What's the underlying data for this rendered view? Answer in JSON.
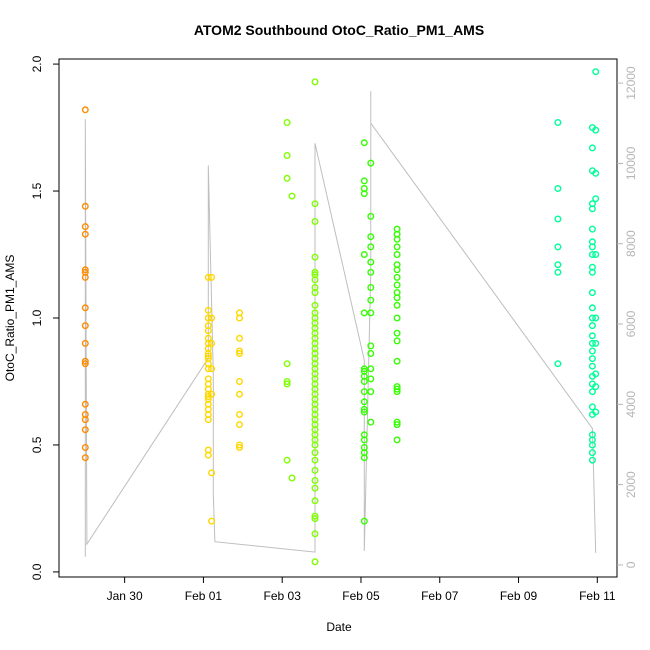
{
  "chart_data": {
    "type": "scatter",
    "title": "ATOM2 Southbound OtoC_Ratio_PM1_AMS",
    "xlabel": "Date",
    "ylabel": "OtoC_Ratio_PM1_AMS",
    "x_tick_labels": [
      "Jan 30",
      "Feb 01",
      "Feb 03",
      "Feb 05",
      "Feb 07",
      "Feb 09",
      "Feb 11"
    ],
    "y_ticks": [
      "0.0",
      "0.5",
      "1.0",
      "1.5",
      "2.0"
    ],
    "y2_ticks": [
      "0",
      "2000",
      "4000",
      "6000",
      "8000",
      "10000",
      "12000"
    ],
    "xlim": [
      "2017-01-28T08:00",
      "2017-02-11T12:00"
    ],
    "ylim": [
      -0.02,
      2.02
    ],
    "y2lim": [
      -300,
      12600
    ],
    "grid": false,
    "colors": {
      "marker_cycle": [
        "#ff8c00",
        "#ffd700",
        "#e8ff00",
        "#7fff00",
        "#00ff00",
        "#00ff80",
        "#00ffcc"
      ],
      "secondary_line": "#bebebe",
      "right_axis": "#b5b5b5"
    },
    "series": [
      {
        "color": "#ff8c00",
        "points": [
          {
            "x": "2017-01-29T00:00",
            "y": [
              1.82,
              1.44,
              1.36,
              1.33,
              1.19,
              1.18,
              1.16,
              1.04,
              0.97,
              0.9,
              0.83,
              0.82,
              0.66,
              0.62,
              0.6,
              0.56,
              0.49,
              0.45
            ]
          }
        ]
      },
      {
        "color": "#ffd700",
        "points": [
          {
            "x": "2017-02-01T03:00",
            "y": [
              1.16,
              1.03,
              1.0,
              0.97,
              0.95,
              0.92,
              0.9,
              0.88,
              0.86,
              0.85,
              0.84,
              0.82,
              0.8,
              0.76,
              0.74,
              0.72,
              0.7,
              0.69,
              0.68,
              0.66,
              0.64,
              0.62,
              0.6,
              0.48,
              0.46
            ]
          },
          {
            "x": "2017-02-01T05:00",
            "y": [
              1.16,
              1.0,
              0.9,
              0.8,
              0.7,
              0.39,
              0.2
            ]
          },
          {
            "x": "2017-02-01T22:00",
            "y": [
              1.02,
              1.0,
              0.92,
              0.87,
              0.86,
              0.75,
              0.7,
              0.62,
              0.58,
              0.5,
              0.49
            ]
          }
        ]
      },
      {
        "color": "#7fff00",
        "points": [
          {
            "x": "2017-02-03T03:00",
            "y": [
              1.77,
              1.64,
              1.55,
              0.82,
              0.75,
              0.74,
              0.44
            ]
          },
          {
            "x": "2017-02-03T06:00",
            "y": [
              1.48,
              0.37
            ]
          },
          {
            "x": "2017-02-03T20:00",
            "y": [
              1.93,
              1.45,
              1.38,
              1.24,
              1.18,
              1.17,
              1.15,
              1.12,
              1.1,
              1.05,
              1.02,
              1.0,
              0.98,
              0.96,
              0.94,
              0.92,
              0.9,
              0.88,
              0.86,
              0.84,
              0.82,
              0.8,
              0.78,
              0.76,
              0.74,
              0.72,
              0.7,
              0.68,
              0.66,
              0.64,
              0.62,
              0.6,
              0.58,
              0.56,
              0.54,
              0.52,
              0.5,
              0.47,
              0.44,
              0.4,
              0.36,
              0.33,
              0.28,
              0.22,
              0.21,
              0.15,
              0.04
            ]
          }
        ]
      },
      {
        "color": "#33ff00",
        "points": [
          {
            "x": "2017-02-05T02:00",
            "y": [
              1.69,
              1.54,
              1.51,
              1.49,
              1.25,
              1.02,
              0.8,
              0.79,
              0.77,
              0.75,
              0.71,
              0.67,
              0.64,
              0.63,
              0.54,
              0.52,
              0.49,
              0.47,
              0.45,
              0.2
            ]
          },
          {
            "x": "2017-02-05T06:00",
            "y": [
              1.61,
              1.4,
              1.32,
              1.28,
              1.22,
              1.18,
              1.12,
              1.07,
              1.02,
              0.89,
              0.86,
              0.8,
              0.76,
              0.71,
              0.59
            ]
          },
          {
            "x": "2017-02-05T22:00",
            "y": [
              1.35,
              1.33,
              1.31,
              1.28,
              1.25,
              1.21,
              1.19,
              1.16,
              1.13,
              1.1,
              1.08,
              1.05,
              1.0,
              0.94,
              0.91,
              0.83,
              0.73,
              0.72,
              0.71,
              0.59,
              0.58,
              0.52
            ]
          }
        ]
      },
      {
        "color": "#00ff99",
        "points": [
          {
            "x": "2017-02-10T00:00",
            "y": [
              1.77,
              1.51,
              1.39,
              1.28,
              1.21,
              1.18,
              0.82
            ]
          },
          {
            "x": "2017-02-10T21:00",
            "y": [
              1.75,
              1.67,
              1.58,
              1.45,
              1.43,
              1.35,
              1.3,
              1.28,
              1.25,
              1.2,
              1.18,
              1.1,
              1.04,
              1.0,
              0.97,
              0.93,
              0.9,
              0.87,
              0.84,
              0.81,
              0.77,
              0.74,
              0.71,
              0.65,
              0.62,
              0.54,
              0.52,
              0.5,
              0.47,
              0.44
            ]
          },
          {
            "x": "2017-02-10T23:00",
            "y": [
              1.97,
              1.74,
              1.57,
              1.47,
              1.25,
              1.0,
              0.9,
              0.78,
              0.73,
              0.63
            ]
          }
        ]
      }
    ],
    "secondary_line": {
      "axis": "right",
      "points": [
        {
          "x": "2017-01-29T00:00",
          "y": 200
        },
        {
          "x": "2017-01-29T00:00",
          "y": 11100
        },
        {
          "x": "2017-01-29T01:00",
          "y": 520
        },
        {
          "x": "2017-02-01T03:00",
          "y": 5150
        },
        {
          "x": "2017-02-01T03:00",
          "y": 9950
        },
        {
          "x": "2017-02-01T06:00",
          "y": 4750
        },
        {
          "x": "2017-02-01T06:00",
          "y": 1750
        },
        {
          "x": "2017-02-01T07:00",
          "y": 580
        },
        {
          "x": "2017-02-03T20:00",
          "y": 320
        },
        {
          "x": "2017-02-03T20:00",
          "y": 10500
        },
        {
          "x": "2017-02-05T02:00",
          "y": 5100
        },
        {
          "x": "2017-02-05T02:00",
          "y": 350
        },
        {
          "x": "2017-02-05T06:00",
          "y": 7300
        },
        {
          "x": "2017-02-05T06:00",
          "y": 11800
        },
        {
          "x": "2017-02-05T06:00",
          "y": 11000
        },
        {
          "x": "2017-02-10T21:00",
          "y": 3400
        },
        {
          "x": "2017-02-10T23:00",
          "y": 300
        }
      ]
    }
  }
}
